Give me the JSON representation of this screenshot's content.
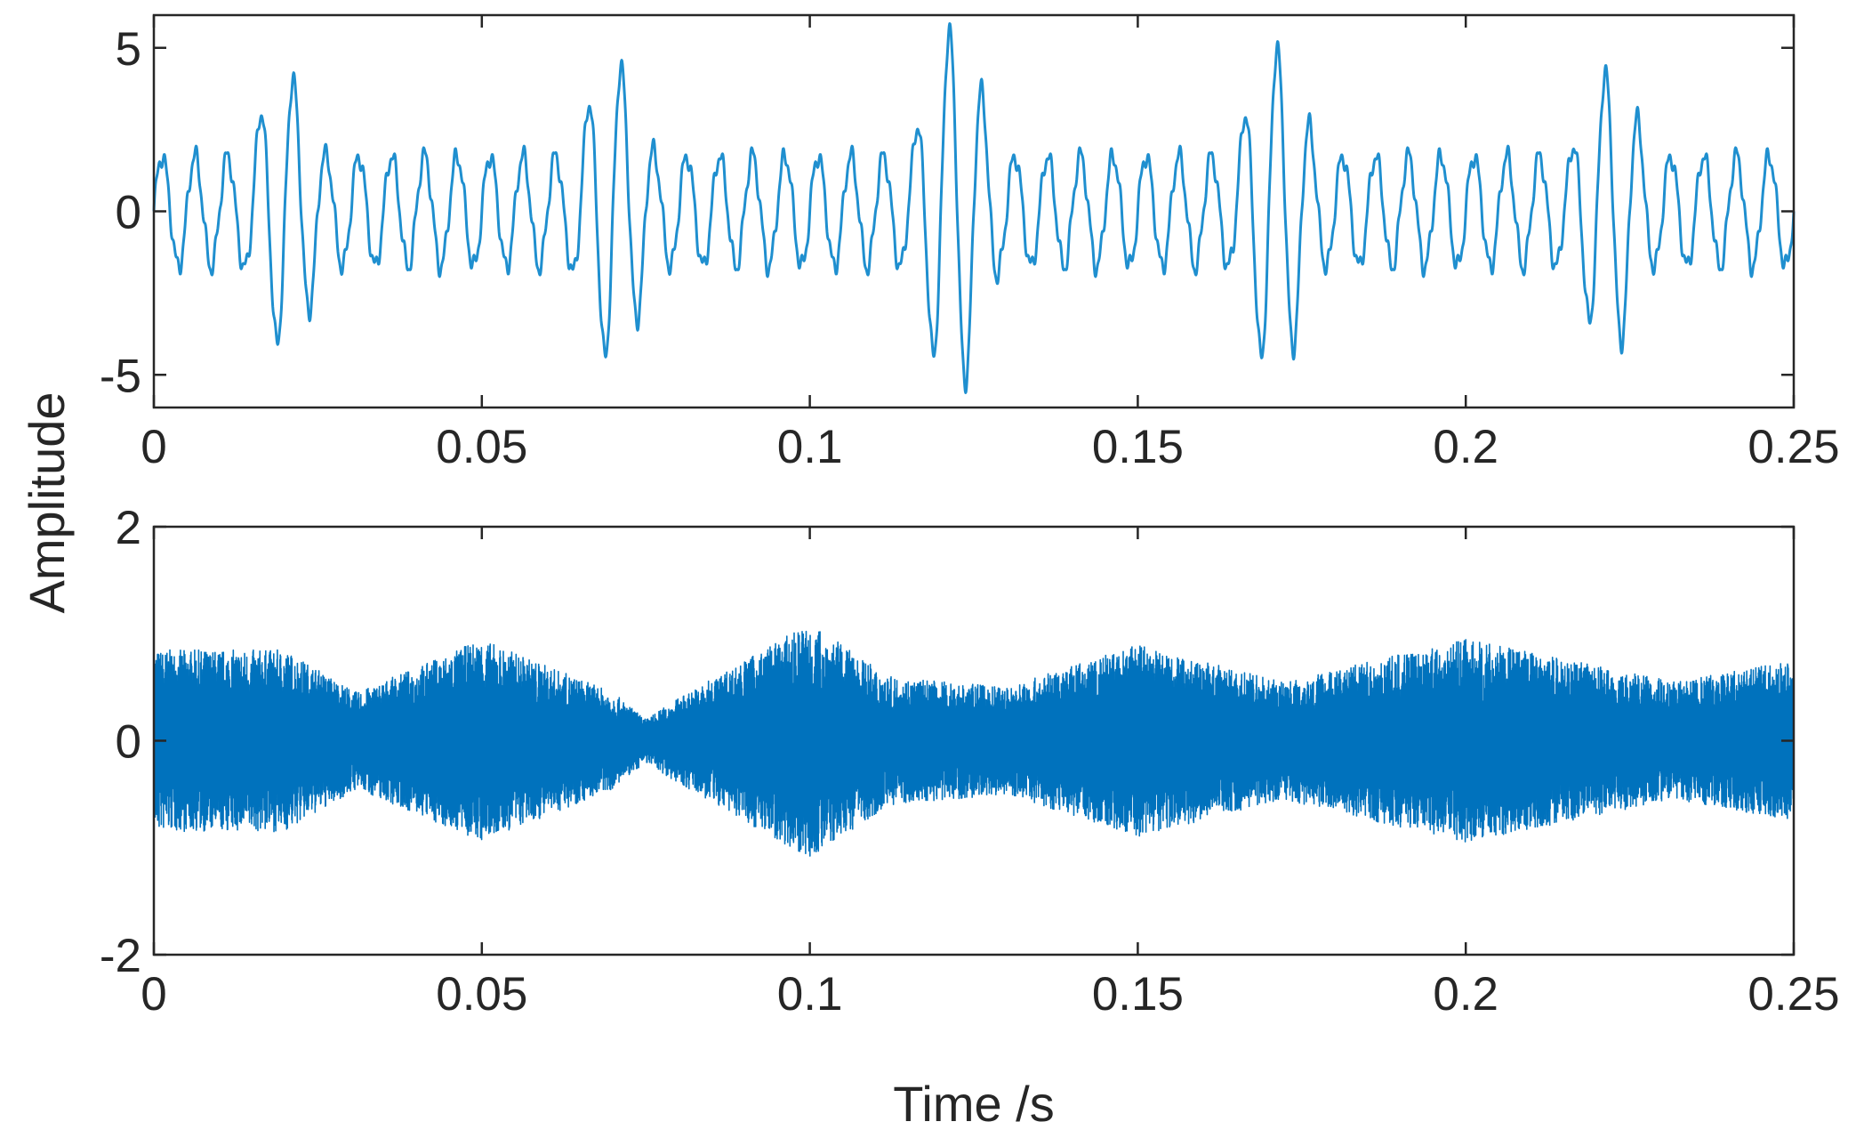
{
  "chart_data": [
    {
      "type": "line",
      "panel": "top",
      "xlim": [
        0,
        0.25
      ],
      "ylim": [
        -6,
        6
      ],
      "xticks": [
        0,
        0.05,
        0.1,
        0.15,
        0.2,
        0.25
      ],
      "xtick_labels": [
        "0",
        "0.05",
        "0.1",
        "0.15",
        "0.2",
        "0.25"
      ],
      "yticks": [
        5,
        0,
        -5
      ],
      "ytick_labels": [
        "5",
        "0",
        "-5"
      ],
      "grid": false,
      "color": "#1f8fcf",
      "description_of_values": "oscillating signal, carrier approx 200 Hz, amplitude modulated",
      "series": [
        {
          "x_start": 0,
          "x_end": 0.25,
          "carrier_hz": 200,
          "envelope_peaks": [
            {
              "x": 0.02,
              "y": 4.2
            },
            {
              "x": 0.07,
              "y": 4.6
            },
            {
              "x": 0.122,
              "y": 5.6
            },
            {
              "x": 0.171,
              "y": 5.0
            },
            {
              "x": 0.222,
              "y": 4.3
            }
          ],
          "baseline_amplitude": 1.7,
          "values": null
        }
      ]
    },
    {
      "type": "line",
      "panel": "bottom",
      "xlim": [
        0,
        0.25
      ],
      "ylim": [
        -2,
        2
      ],
      "xticks": [
        0,
        0.05,
        0.1,
        0.15,
        0.2,
        0.25
      ],
      "xtick_labels": [
        "0",
        "0.05",
        "0.1",
        "0.15",
        "0.2",
        "0.25"
      ],
      "yticks": [
        2,
        0,
        -2
      ],
      "ytick_labels": [
        "2",
        "0",
        "-2"
      ],
      "grid": false,
      "color": "#0072bd",
      "series": [
        {
          "x_start": 0,
          "x_end": 0.25,
          "dense_noise": true,
          "envelope_points": [
            {
              "x": 0.0,
              "y": 0.85
            },
            {
              "x": 0.02,
              "y": 0.85
            },
            {
              "x": 0.031,
              "y": 0.45
            },
            {
              "x": 0.05,
              "y": 0.95
            },
            {
              "x": 0.07,
              "y": 0.45
            },
            {
              "x": 0.075,
              "y": 0.2
            },
            {
              "x": 0.08,
              "y": 0.4
            },
            {
              "x": 0.1,
              "y": 1.1
            },
            {
              "x": 0.112,
              "y": 0.6
            },
            {
              "x": 0.13,
              "y": 0.5
            },
            {
              "x": 0.15,
              "y": 0.9
            },
            {
              "x": 0.172,
              "y": 0.55
            },
            {
              "x": 0.2,
              "y": 0.95
            },
            {
              "x": 0.232,
              "y": 0.55
            },
            {
              "x": 0.25,
              "y": 0.75
            }
          ]
        }
      ]
    }
  ],
  "labels": {
    "ylabel": "Amplitude",
    "xlabel": "Time /s"
  }
}
